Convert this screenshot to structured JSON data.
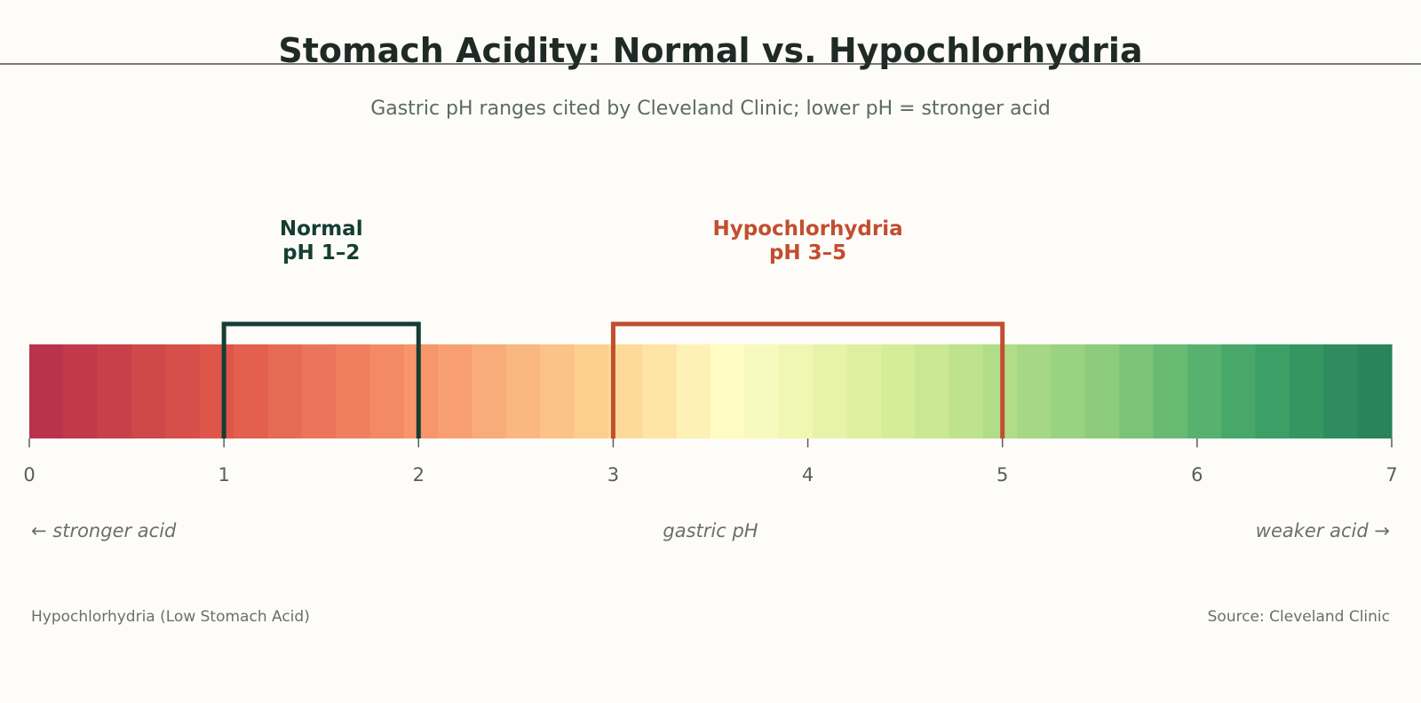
{
  "chart_data": {
    "type": "heatmap",
    "title": "Stomach Acidity: Normal vs. Hypochlorhydria",
    "subtitle": "Gastric pH ranges cited by Cleveland Clinic; lower pH = stronger acid",
    "xlabel": "gastric pH",
    "xlim": [
      0,
      7
    ],
    "ticks": [
      0,
      1,
      2,
      3,
      4,
      5,
      6,
      7
    ],
    "tick_labels": [
      "0",
      "1",
      "2",
      "3",
      "4",
      "5",
      "6",
      "7"
    ],
    "scale": {
      "stops": [
        {
          "ph": 0,
          "color": "#b5304a"
        },
        {
          "ph": 1,
          "color": "#e0574a"
        },
        {
          "ph": 2,
          "color": "#f7946a"
        },
        {
          "ph": 3,
          "color": "#fdd693"
        },
        {
          "ph": 3.6,
          "color": "#fffdc4"
        },
        {
          "ph": 4.5,
          "color": "#d4ec95"
        },
        {
          "ph": 5.5,
          "color": "#8dcd7c"
        },
        {
          "ph": 6.3,
          "color": "#3ea468"
        },
        {
          "ph": 7,
          "color": "#267e59"
        }
      ]
    },
    "ranges": [
      {
        "name": "Normal",
        "label": "pH 1–2",
        "from": 1,
        "to": 2,
        "color": "#153d33"
      },
      {
        "name": "Hypochlorhydria",
        "label": "pH 3–5",
        "from": 3,
        "to": 5,
        "color": "#c24e2e"
      }
    ],
    "annotations": {
      "left": "← stronger acid",
      "right": "weaker acid →"
    },
    "footer": {
      "left": "Hypochlorhydria (Low Stomach Acid)",
      "right": "Source: Cleveland Clinic"
    }
  }
}
